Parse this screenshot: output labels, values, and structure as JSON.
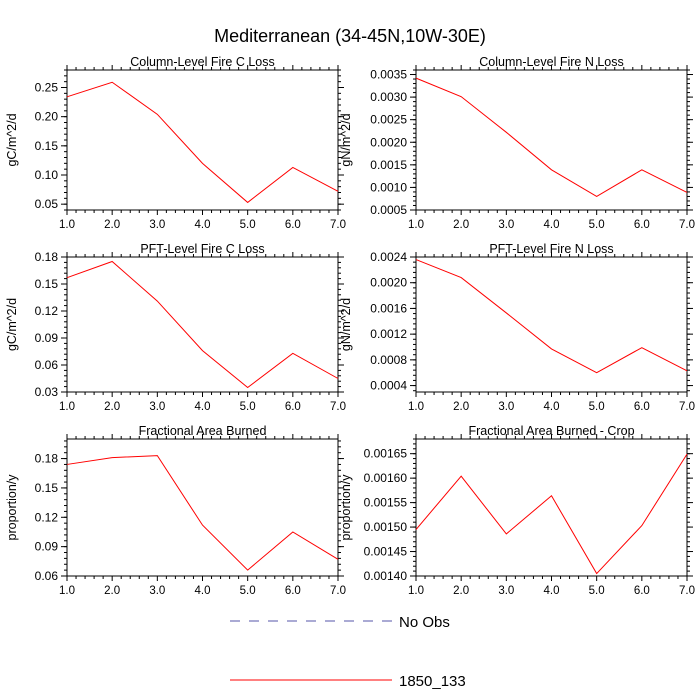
{
  "figure": {
    "title": "Mediterranean (34-45N,10W-30E)"
  },
  "legend": {
    "items": [
      {
        "label": "No Obs",
        "color": "#5555aa",
        "dashed": true
      },
      {
        "label": "1850_133",
        "color": "#ff0000",
        "dashed": false
      }
    ]
  },
  "chart_data": [
    {
      "type": "line",
      "title": "Column-Level Fire C Loss",
      "ylabel": "gC/m^2/d",
      "xlabel": "",
      "x": [
        1,
        2,
        3,
        4,
        5,
        6,
        7
      ],
      "xlim": [
        1,
        7
      ],
      "xticks": [
        "1.0",
        "2.0",
        "3.0",
        "4.0",
        "5.0",
        "6.0",
        "7.0"
      ],
      "ylim": [
        0.04,
        0.28
      ],
      "yticks": [
        0.05,
        0.1,
        0.15,
        0.2,
        0.25
      ],
      "yticklabels": [
        "0.05",
        "0.10",
        "0.15",
        "0.20",
        "0.25"
      ],
      "series": [
        {
          "name": "1850_133",
          "color": "#ff0000",
          "values": [
            0.234,
            0.259,
            0.204,
            0.12,
            0.053,
            0.113,
            0.072
          ]
        }
      ]
    },
    {
      "type": "line",
      "title": "Column-Level Fire N Loss",
      "ylabel": "gN/m^2/d",
      "xlabel": "",
      "x": [
        1,
        2,
        3,
        4,
        5,
        6,
        7
      ],
      "xlim": [
        1,
        7
      ],
      "xticks": [
        "1.0",
        "2.0",
        "3.0",
        "4.0",
        "5.0",
        "6.0",
        "7.0"
      ],
      "ylim": [
        0.0005,
        0.0036
      ],
      "yticks": [
        0.0005,
        0.001,
        0.0015,
        0.002,
        0.0025,
        0.003,
        0.0035
      ],
      "yticklabels": [
        "0.0005",
        "0.0010",
        "0.0015",
        "0.0020",
        "0.0025",
        "0.0030",
        "0.0035"
      ],
      "series": [
        {
          "name": "1850_133",
          "color": "#ff0000",
          "values": [
            0.00342,
            0.00301,
            0.00222,
            0.00139,
            0.0008,
            0.00139,
            0.00089
          ]
        }
      ]
    },
    {
      "type": "line",
      "title": "PFT-Level Fire C Loss",
      "ylabel": "gC/m^2/d",
      "xlabel": "",
      "x": [
        1,
        2,
        3,
        4,
        5,
        6,
        7
      ],
      "xlim": [
        1,
        7
      ],
      "xticks": [
        "1.0",
        "2.0",
        "3.0",
        "4.0",
        "5.0",
        "6.0",
        "7.0"
      ],
      "ylim": [
        0.03,
        0.18
      ],
      "yticks": [
        0.03,
        0.06,
        0.09,
        0.12,
        0.15,
        0.18
      ],
      "yticklabels": [
        "0.03",
        "0.06",
        "0.09",
        "0.12",
        "0.15",
        "0.18"
      ],
      "series": [
        {
          "name": "1850_133",
          "color": "#ff0000",
          "values": [
            0.157,
            0.175,
            0.131,
            0.076,
            0.035,
            0.073,
            0.045
          ]
        }
      ]
    },
    {
      "type": "line",
      "title": "PFT-Level Fire N Loss",
      "ylabel": "gN/m^2/d",
      "xlabel": "",
      "x": [
        1,
        2,
        3,
        4,
        5,
        6,
        7
      ],
      "xlim": [
        1,
        7
      ],
      "xticks": [
        "1.0",
        "2.0",
        "3.0",
        "4.0",
        "5.0",
        "6.0",
        "7.0"
      ],
      "ylim": [
        0.0003,
        0.0024
      ],
      "yticks": [
        0.0004,
        0.0008,
        0.0012,
        0.0016,
        0.002,
        0.0024
      ],
      "yticklabels": [
        "0.0004",
        "0.0008",
        "0.0012",
        "0.0016",
        "0.0020",
        "0.0024"
      ],
      "series": [
        {
          "name": "1850_133",
          "color": "#ff0000",
          "values": [
            0.00236,
            0.00208,
            0.00153,
            0.00097,
            0.0006,
            0.00099,
            0.00063
          ]
        }
      ]
    },
    {
      "type": "line",
      "title": "Fractional Area Burned",
      "ylabel": "proportion/y",
      "xlabel": "",
      "x": [
        1,
        2,
        3,
        4,
        5,
        6,
        7
      ],
      "xlim": [
        1,
        7
      ],
      "xticks": [
        "1.0",
        "2.0",
        "3.0",
        "4.0",
        "5.0",
        "6.0",
        "7.0"
      ],
      "ylim": [
        0.06,
        0.2
      ],
      "yticks": [
        0.06,
        0.09,
        0.12,
        0.15,
        0.18
      ],
      "yticklabels": [
        "0.06",
        "0.09",
        "0.12",
        "0.15",
        "0.18"
      ],
      "series": [
        {
          "name": "1850_133",
          "color": "#ff0000",
          "values": [
            0.174,
            0.181,
            0.183,
            0.112,
            0.066,
            0.105,
            0.077
          ]
        }
      ]
    },
    {
      "type": "line",
      "title": "Fractional Area Burned - Crop",
      "ylabel": "proportion/y",
      "xlabel": "",
      "x": [
        1,
        2,
        3,
        4,
        5,
        6,
        7
      ],
      "xlim": [
        1,
        7
      ],
      "xticks": [
        "1.0",
        "2.0",
        "3.0",
        "4.0",
        "5.0",
        "6.0",
        "7.0"
      ],
      "ylim": [
        0.0014,
        0.00168
      ],
      "yticks": [
        0.0014,
        0.00145,
        0.0015,
        0.00155,
        0.0016,
        0.00165
      ],
      "yticklabels": [
        "0.00140",
        "0.00145",
        "0.00150",
        "0.00155",
        "0.00160",
        "0.00165"
      ],
      "series": [
        {
          "name": "1850_133",
          "color": "#ff0000",
          "values": [
            0.001495,
            0.001604,
            0.001486,
            0.001564,
            0.001405,
            0.001503,
            0.001649
          ]
        }
      ]
    }
  ]
}
